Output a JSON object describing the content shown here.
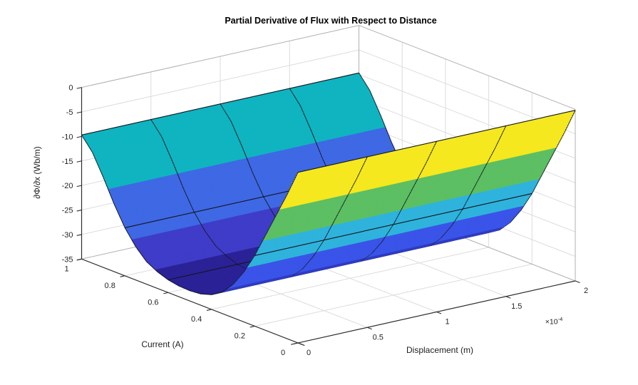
{
  "chart_data": {
    "type": "surface",
    "title": "Partial Derivative of Flux with Respect to Distance",
    "xlabel": "Displacement (m)",
    "ylabel": "Current (A)",
    "zlabel": "∂Φ/∂x  (Wb/m)",
    "x_exponent_base": "×10",
    "x_exponent_power": "-4",
    "x_axis": {
      "range": [
        0,
        0.0002
      ],
      "tick_values": [
        0,
        5e-05,
        0.0001,
        0.00015,
        0.0002
      ],
      "tick_labels": [
        "0",
        "0.5",
        "1",
        "1.5",
        "2"
      ]
    },
    "y_axis": {
      "range": [
        0,
        1
      ],
      "tick_values": [
        1,
        0.8,
        0.6,
        0.4,
        0.2,
        0
      ],
      "tick_labels": [
        "1",
        "0.8",
        "0.6",
        "0.4",
        "0.2",
        "0"
      ]
    },
    "z_axis": {
      "range": [
        -35,
        0
      ],
      "tick_values": [
        0,
        -5,
        -10,
        -15,
        -20,
        -25,
        -30,
        -35
      ],
      "tick_labels": [
        "0",
        "-5",
        "-10",
        "-15",
        "-20",
        "-25",
        "-30",
        "-35"
      ]
    },
    "grid": true,
    "legend": "none",
    "surface": {
      "note": "dPhi/dx depends on Current only; valley profile extruded along Displacement",
      "mesh_x_lines": [
        0,
        0.25,
        0.5,
        0.75,
        1
      ],
      "mesh_y_lines": [
        0,
        0.2,
        0.4,
        0.6,
        0.8,
        1
      ],
      "profile_current": [
        0,
        0.05,
        0.1,
        0.15,
        0.2,
        0.25,
        0.3,
        0.35,
        0.4,
        0.45,
        0.5,
        0.55,
        0.6,
        0.65,
        0.7,
        0.75,
        0.8,
        0.85,
        0.9,
        0.95,
        1
      ],
      "profile_z": [
        -0.2,
        -5.6,
        -10.6,
        -15.6,
        -20.6,
        -24.8,
        -28.2,
        -30.6,
        -32.0,
        -32.7,
        -32.9,
        -32.8,
        -32.4,
        -31.6,
        -30.4,
        -28.2,
        -25.2,
        -21.2,
        -16.6,
        -12.4,
        -9.7
      ],
      "color_bands_by_current": [
        {
          "upto": 0.088,
          "color": "#F5E81F"
        },
        {
          "upto": 0.162,
          "color": "#5CBF63"
        },
        {
          "upto": 0.238,
          "color": "#2FB3DC"
        },
        {
          "upto": 0.328,
          "color": "#3A54E8"
        },
        {
          "upto": 0.4,
          "color": "#2F3CC4"
        },
        {
          "upto": 0.66,
          "color": "#2B2296"
        },
        {
          "upto": 0.77,
          "color": "#3F3CC8"
        },
        {
          "upto": 0.877,
          "color": "#3E68E4"
        },
        {
          "upto": 1.001,
          "color": "#0FB4C0"
        }
      ]
    },
    "colors": {
      "background": "#ffffff",
      "mesh_line": "#15151d",
      "grid_line": "#dcdcdc",
      "pane_edge": "#b0b0b0",
      "axis_line": "#2e2e2e",
      "text": "#262626"
    }
  }
}
